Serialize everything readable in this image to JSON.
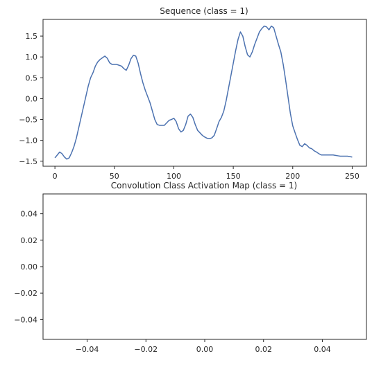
{
  "chart_data": [
    {
      "type": "line",
      "title": "Sequence (class = 1)",
      "xlabel": "",
      "ylabel": "",
      "xlim": [
        -10,
        262
      ],
      "ylim": [
        -1.62,
        1.9
      ],
      "xticks": [
        0,
        50,
        100,
        150,
        200,
        250
      ],
      "xtick_labels": [
        "0",
        "50",
        "100",
        "150",
        "200",
        "250"
      ],
      "yticks": [
        -1.5,
        -1.0,
        -0.5,
        0.0,
        0.5,
        1.0,
        1.5
      ],
      "ytick_labels": [
        "−1.5",
        "−1.0",
        "−0.5",
        "0.0",
        "0.5",
        "1.0",
        "1.5"
      ],
      "grid": false,
      "series": [
        {
          "color": "#4c72b0",
          "x": [
            0,
            2,
            4,
            6,
            8,
            10,
            12,
            14,
            16,
            18,
            20,
            22,
            24,
            26,
            28,
            30,
            32,
            34,
            36,
            38,
            40,
            42,
            44,
            46,
            48,
            50,
            52,
            54,
            56,
            58,
            60,
            62,
            64,
            66,
            68,
            70,
            72,
            74,
            76,
            78,
            80,
            82,
            84,
            86,
            88,
            90,
            92,
            94,
            96,
            98,
            100,
            102,
            104,
            106,
            108,
            110,
            112,
            114,
            116,
            118,
            120,
            122,
            124,
            126,
            128,
            130,
            132,
            134,
            136,
            138,
            140,
            142,
            144,
            146,
            148,
            150,
            152,
            154,
            156,
            158,
            160,
            162,
            164,
            166,
            168,
            170,
            172,
            174,
            176,
            178,
            180,
            182,
            184,
            186,
            188,
            190,
            192,
            194,
            196,
            198,
            200,
            202,
            204,
            206,
            208,
            210,
            212,
            214,
            216,
            218,
            220,
            222,
            224,
            226,
            228,
            230,
            232,
            234,
            236,
            238,
            240,
            242,
            244,
            246,
            248,
            250
          ],
          "y": [
            -1.42,
            -1.35,
            -1.28,
            -1.32,
            -1.4,
            -1.45,
            -1.42,
            -1.3,
            -1.15,
            -0.95,
            -0.7,
            -0.45,
            -0.2,
            0.05,
            0.3,
            0.5,
            0.62,
            0.78,
            0.88,
            0.94,
            0.98,
            1.02,
            0.97,
            0.86,
            0.82,
            0.82,
            0.82,
            0.8,
            0.78,
            0.72,
            0.68,
            0.8,
            0.96,
            1.04,
            1.02,
            0.85,
            0.6,
            0.38,
            0.2,
            0.05,
            -0.1,
            -0.3,
            -0.5,
            -0.62,
            -0.64,
            -0.64,
            -0.64,
            -0.58,
            -0.52,
            -0.5,
            -0.47,
            -0.55,
            -0.72,
            -0.8,
            -0.76,
            -0.62,
            -0.42,
            -0.37,
            -0.45,
            -0.62,
            -0.76,
            -0.82,
            -0.88,
            -0.92,
            -0.95,
            -0.96,
            -0.94,
            -0.88,
            -0.72,
            -0.55,
            -0.45,
            -0.3,
            -0.05,
            0.25,
            0.55,
            0.85,
            1.15,
            1.42,
            1.6,
            1.5,
            1.25,
            1.05,
            1.0,
            1.12,
            1.3,
            1.45,
            1.6,
            1.68,
            1.74,
            1.72,
            1.65,
            1.74,
            1.7,
            1.5,
            1.3,
            1.12,
            0.82,
            0.45,
            0.05,
            -0.35,
            -0.65,
            -0.82,
            -0.98,
            -1.12,
            -1.15,
            -1.08,
            -1.12,
            -1.18,
            -1.2,
            -1.25,
            -1.28,
            -1.32,
            -1.35,
            -1.35,
            -1.35,
            -1.35,
            -1.35,
            -1.35,
            -1.36,
            -1.37,
            -1.38,
            -1.38,
            -1.38,
            -1.38,
            -1.39,
            -1.4
          ]
        }
      ]
    },
    {
      "type": "heatmap",
      "title": "Convolution Class Activation Map (class = 1)",
      "xlabel": "",
      "ylabel": "",
      "xlim": [
        -0.055,
        0.055
      ],
      "ylim": [
        -0.055,
        0.055
      ],
      "xticks": [
        -0.04,
        -0.02,
        0.0,
        0.02,
        0.04
      ],
      "xtick_labels": [
        "−0.04",
        "−0.02",
        "0.00",
        "0.02",
        "0.04"
      ],
      "yticks": [
        0.04,
        0.02,
        0.0,
        -0.02,
        -0.04
      ],
      "ytick_labels": [
        "0.04",
        "0.02",
        "0.00",
        "−0.02",
        "−0.04"
      ],
      "grid": false,
      "values": []
    }
  ]
}
